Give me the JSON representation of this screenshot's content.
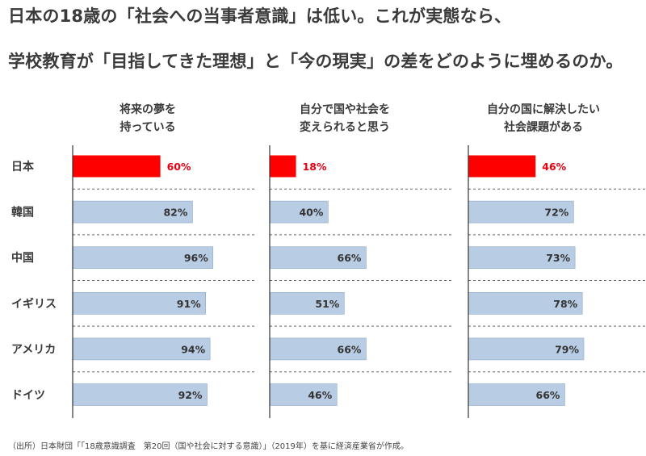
{
  "headline": {
    "line1": "日本の18歳の「社会への当事者意識」は低い。これが実態なら、",
    "line2": "学校教育が「目指してきた理想」と「今の現実」の差をどのように埋めるのか。"
  },
  "source": "（出所）日本財団「「18歳意識調査　第20回（国や社会に対する意識）」（2019年）を基に経済産業省が作成。",
  "colors": {
    "highlight_bar": "#ff0000",
    "highlight_text": "#e60012",
    "normal_bar": "#b8cce4",
    "normal_border": "#8ea9c8",
    "axis": "#333333",
    "separator": "#666666"
  },
  "chart_data": {
    "type": "bar",
    "orientation": "horizontal",
    "categories": [
      "日本",
      "韓国",
      "中国",
      "イギリス",
      "アメリカ",
      "ドイツ"
    ],
    "unit": "%",
    "xlim": [
      0,
      100
    ],
    "grid": false,
    "highlight_category": "日本",
    "panels": [
      {
        "title_lines": [
          "将来の夢を",
          "持っている"
        ],
        "values": [
          60,
          82,
          96,
          91,
          94,
          92
        ]
      },
      {
        "title_lines": [
          "自分で国や社会を",
          "変えられると思う"
        ],
        "values": [
          18,
          40,
          66,
          51,
          66,
          46
        ]
      },
      {
        "title_lines": [
          "自分の国に解決したい",
          "社会課題がある"
        ],
        "values": [
          46,
          72,
          73,
          78,
          79,
          66
        ]
      }
    ]
  }
}
